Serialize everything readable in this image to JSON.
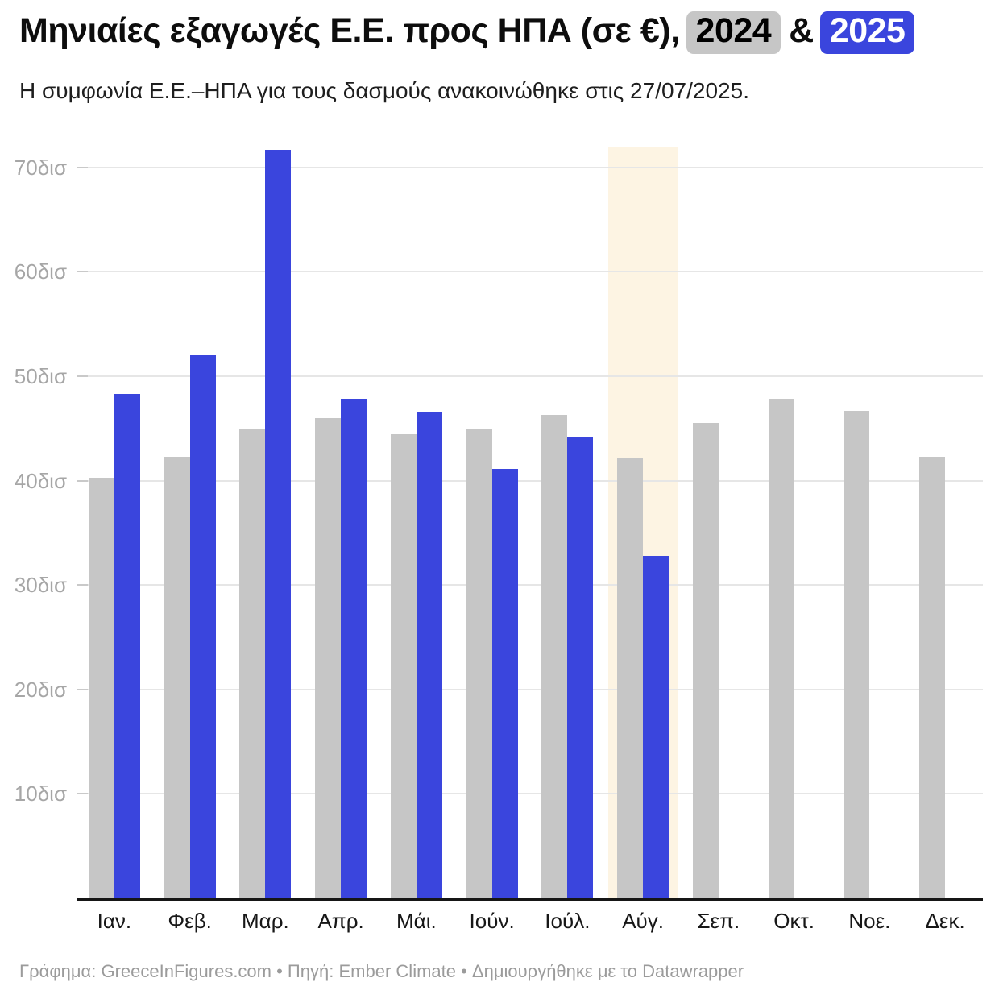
{
  "header": {
    "title_prefix": "Μηνιαίες εξαγωγές Ε.Ε. προς ΗΠΑ (σε €),",
    "badge_2024": "2024",
    "ampersand": "&",
    "badge_2025": "2025",
    "subtitle": "Η συμφωνία Ε.Ε.–ΗΠΑ για τους δασμούς ανακοινώθηκε στις 27/07/2025."
  },
  "footer": {
    "credit": "Γράφημα: GreeceInFigures.com • Πηγή: Ember Climate • Δημιουργήθηκε με το Datawrapper"
  },
  "colors": {
    "accent_2025": "#3a45dd",
    "bar_2024": "#c6c6c6",
    "highlight_band": "#fdf4e3",
    "gridline": "#e6e6e6",
    "axis_line": "#161616",
    "y_label": "#a6a6a6",
    "x_label": "#171717"
  },
  "chart_data": {
    "type": "bar",
    "title": "Μηνιαίες εξαγωγές Ε.Ε. προς ΗΠΑ (σε €), 2024 & 2025",
    "subtitle": "Η συμφωνία Ε.Ε.–ΗΠΑ για τους δασμούς ανακοινώθηκε στις 27/07/2025.",
    "unit": "δισ €",
    "categories": [
      "Ιαν.",
      "Φεβ.",
      "Μαρ.",
      "Απρ.",
      "Μάι.",
      "Ιούν.",
      "Ιούλ.",
      "Αύγ.",
      "Σεπ.",
      "Οκτ.",
      "Νοε.",
      "Δεκ."
    ],
    "series": [
      {
        "name": "2024",
        "color": "#c6c6c6",
        "values": [
          40.3,
          42.3,
          44.9,
          46.0,
          44.4,
          44.9,
          46.3,
          42.2,
          45.5,
          47.8,
          46.7,
          42.3
        ]
      },
      {
        "name": "2025",
        "color": "#3a45dd",
        "values": [
          48.3,
          52.0,
          71.7,
          47.8,
          46.6,
          41.1,
          44.2,
          32.8,
          null,
          null,
          null,
          null
        ]
      }
    ],
    "ylim": [
      0,
      71.9
    ],
    "yticks": [
      {
        "value": 10,
        "label": "10δισ"
      },
      {
        "value": 20,
        "label": "20δισ"
      },
      {
        "value": 30,
        "label": "30δισ"
      },
      {
        "value": 40,
        "label": "40δισ"
      },
      {
        "value": 50,
        "label": "50δισ"
      },
      {
        "value": 60,
        "label": "60δισ"
      },
      {
        "value": 70,
        "label": "70δισ"
      }
    ],
    "grid": true,
    "legend": "inline-title-badges",
    "highlight": {
      "category": "Αύγ.",
      "category_index": 7,
      "color": "#fdf4e3"
    }
  }
}
